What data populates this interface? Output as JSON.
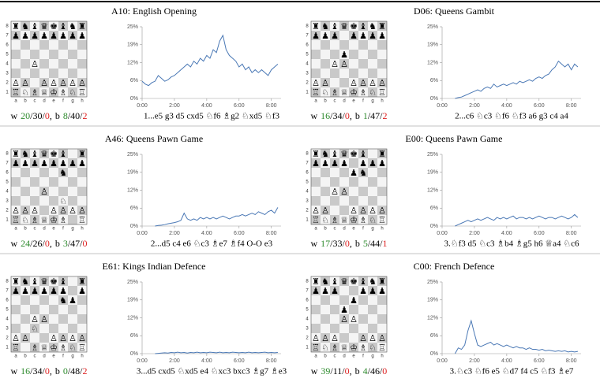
{
  "files": [
    "a",
    "b",
    "c",
    "d",
    "e",
    "f",
    "g",
    "h"
  ],
  "ranks": [
    "8",
    "7",
    "6",
    "5",
    "4",
    "3",
    "2",
    "1"
  ],
  "stats_labels": {
    "w": "w",
    "b": "b",
    "slash": "/",
    "comma": ","
  },
  "chart_data": [
    {
      "type": "line",
      "title": "A10: English Opening",
      "color": "#4a78b5",
      "board": [
        "♜♞♝♛♚♝♞♜",
        "♟♟♟♟♟♟♟♟",
        "        ",
        "        ",
        "  ♙     ",
        "        ",
        "♙♙ ♙♙♙♙♙",
        "♖♘♗♕♔♗♘♖"
      ],
      "stats": {
        "w": [
          20,
          30,
          0
        ],
        "b": [
          8,
          40,
          2
        ]
      },
      "moves": "1...e5 g3 d5 cxd5 ♘f6 ♗g2 ♘xd5 ♘f3",
      "x": [
        0,
        0.2,
        0.4,
        0.6,
        0.8,
        1,
        1.2,
        1.4,
        1.6,
        1.8,
        2,
        2.2,
        2.4,
        2.6,
        2.8,
        3,
        3.2,
        3.4,
        3.6,
        3.8,
        4,
        4.2,
        4.4,
        4.6,
        4.8,
        5,
        5.2,
        5.4,
        5.6,
        5.8,
        6,
        6.2,
        6.4,
        6.6,
        6.8,
        7,
        7.2,
        7.4,
        7.6,
        7.8,
        8,
        8.2,
        8.4
      ],
      "values": [
        6,
        5,
        4.5,
        5.5,
        6,
        8,
        7,
        6,
        6.5,
        7.5,
        8,
        9,
        10,
        11,
        12,
        11,
        13,
        12,
        14,
        13,
        15,
        14,
        17,
        16,
        20,
        22,
        17,
        15,
        14,
        13,
        11,
        12,
        10,
        11,
        9,
        10,
        9,
        10,
        9,
        8,
        10,
        11,
        12
      ],
      "xlim": [
        0,
        8.6
      ],
      "xticks": [
        {
          "value": 0,
          "label": "0:00"
        },
        {
          "value": 2,
          "label": "2:00"
        },
        {
          "value": 4,
          "label": "4:00"
        },
        {
          "value": 6,
          "label": "6:00"
        },
        {
          "value": 8,
          "label": "8:00"
        }
      ],
      "ylim": [
        0,
        25
      ],
      "yticks": [
        {
          "value": 0,
          "label": "0%"
        },
        {
          "value": 6.25,
          "label": "6%"
        },
        {
          "value": 12.5,
          "label": "12%"
        },
        {
          "value": 18.75,
          "label": "19%"
        },
        {
          "value": 25,
          "label": "25%"
        }
      ]
    },
    {
      "type": "line",
      "title": "D06: Queens Gambit",
      "color": "#4a78b5",
      "board": [
        "♜♞♝♛♚♝♞♜",
        "♟♟♟ ♟♟♟♟",
        "        ",
        "   ♟    ",
        "  ♙♙    ",
        "        ",
        "♙♙  ♙♙♙♙",
        "♖♘♗♕♔♗♘♖"
      ],
      "stats": {
        "w": [
          16,
          34,
          0
        ],
        "b": [
          1,
          47,
          2
        ]
      },
      "moves": "2...c6 ♘c3 ♘f6 ♘f3 a6 g3 c4 a4",
      "x": [
        0.8,
        1,
        1.2,
        1.4,
        1.6,
        1.8,
        2,
        2.2,
        2.4,
        2.6,
        2.8,
        3,
        3.2,
        3.4,
        3.6,
        3.8,
        4,
        4.2,
        4.4,
        4.6,
        4.8,
        5,
        5.2,
        5.4,
        5.6,
        5.8,
        6,
        6.2,
        6.4,
        6.6,
        6.8,
        7,
        7.2,
        7.4,
        7.6,
        7.8,
        8,
        8.2,
        8.4
      ],
      "values": [
        0,
        0.3,
        0.5,
        1,
        1.5,
        2,
        2.5,
        3,
        2.5,
        3.5,
        4,
        3.5,
        5,
        4,
        4.5,
        5,
        4.5,
        5,
        5.5,
        5,
        6,
        5.5,
        6,
        6.5,
        6,
        7,
        7.5,
        7,
        8,
        8.5,
        10,
        11,
        13,
        12,
        11,
        12,
        10,
        12,
        11
      ],
      "xlim": [
        0,
        8.6
      ],
      "xticks": [
        {
          "value": 0,
          "label": "0:00"
        },
        {
          "value": 2,
          "label": "2:00"
        },
        {
          "value": 4,
          "label": "4:00"
        },
        {
          "value": 6,
          "label": "6:00"
        },
        {
          "value": 8,
          "label": "8:00"
        }
      ],
      "ylim": [
        0,
        25
      ],
      "yticks": [
        {
          "value": 0,
          "label": "0%"
        },
        {
          "value": 6.25,
          "label": "6%"
        },
        {
          "value": 12.5,
          "label": "12%"
        },
        {
          "value": 18.75,
          "label": "19%"
        },
        {
          "value": 25,
          "label": "25%"
        }
      ]
    },
    {
      "type": "line",
      "title": "A46: Queens Pawn Game",
      "color": "#4a78b5",
      "board": [
        "♜♞♝♛♚♝ ♜",
        "♟♟♟♟♟♟♟♟",
        "     ♞  ",
        "        ",
        "   ♙    ",
        "     ♘  ",
        "♙♙♙ ♙♙♙♙",
        "♖♘♗♕♔♗ ♖"
      ],
      "stats": {
        "w": [
          24,
          26,
          0
        ],
        "b": [
          3,
          47,
          0
        ]
      },
      "moves": "2...d5 c4 e6 ♘c3 ♗e7 ♗f4 O-O e3",
      "x": [
        0.8,
        1,
        1.2,
        1.4,
        1.6,
        1.8,
        2,
        2.2,
        2.4,
        2.6,
        2.8,
        3,
        3.2,
        3.4,
        3.6,
        3.8,
        4,
        4.2,
        4.4,
        4.6,
        4.8,
        5,
        5.2,
        5.4,
        5.6,
        5.8,
        6,
        6.2,
        6.4,
        6.6,
        6.8,
        7,
        7.2,
        7.4,
        7.6,
        7.8,
        8,
        8.2,
        8.4
      ],
      "values": [
        0,
        0.2,
        0.3,
        0.5,
        0.8,
        1,
        1.2,
        1.5,
        2,
        4.5,
        2.5,
        2,
        2.5,
        2,
        3,
        2.5,
        3,
        2.5,
        3,
        2.5,
        3,
        3.5,
        3,
        2.5,
        3,
        3.5,
        3.5,
        4,
        3.5,
        4,
        4.5,
        4,
        5,
        4.5,
        4,
        5,
        5.5,
        4.5,
        6.5
      ],
      "xlim": [
        0,
        8.6
      ],
      "xticks": [
        {
          "value": 0,
          "label": "0:00"
        },
        {
          "value": 2,
          "label": "2:00"
        },
        {
          "value": 4,
          "label": "4:00"
        },
        {
          "value": 6,
          "label": "6:00"
        },
        {
          "value": 8,
          "label": "8:00"
        }
      ],
      "ylim": [
        0,
        25
      ],
      "yticks": [
        {
          "value": 0,
          "label": "0%"
        },
        {
          "value": 6.25,
          "label": "6%"
        },
        {
          "value": 12.5,
          "label": "12%"
        },
        {
          "value": 18.75,
          "label": "19%"
        },
        {
          "value": 25,
          "label": "25%"
        }
      ]
    },
    {
      "type": "line",
      "title": "E00: Queens Pawn Game",
      "color": "#4a78b5",
      "board": [
        "♜♞♝♛♚♝ ♜",
        "♟♟♟♟ ♟♟♟",
        "    ♟♞  ",
        "        ",
        "  ♙♙    ",
        "        ",
        "♙♙  ♙♙♙♙",
        "♖♘♗♕♔♗♘♖"
      ],
      "stats": {
        "w": [
          17,
          33,
          0
        ],
        "b": [
          5,
          44,
          1
        ]
      },
      "moves": "3.♘f3 d5 ♘c3 ♗b4 ♗g5 h6 ♕a4 ♘c6",
      "x": [
        0.8,
        1,
        1.2,
        1.4,
        1.6,
        1.8,
        2,
        2.2,
        2.4,
        2.6,
        2.8,
        3,
        3.2,
        3.4,
        3.6,
        3.8,
        4,
        4.2,
        4.4,
        4.6,
        4.8,
        5,
        5.2,
        5.4,
        5.6,
        5.8,
        6,
        6.2,
        6.4,
        6.6,
        6.8,
        7,
        7.2,
        7.4,
        7.6,
        7.8,
        8,
        8.2,
        8.4
      ],
      "values": [
        0,
        0.5,
        1,
        1.5,
        2,
        1.5,
        2,
        2.5,
        2,
        2.5,
        3,
        2.5,
        2,
        3,
        2.5,
        3,
        2.5,
        3,
        3.5,
        2.5,
        3,
        3,
        2.5,
        3,
        2.5,
        3,
        3.5,
        3,
        2.5,
        3,
        3,
        2.5,
        3,
        3.5,
        3,
        2.5,
        3,
        4,
        3
      ],
      "xlim": [
        0,
        8.6
      ],
      "xticks": [
        {
          "value": 0,
          "label": "0:00"
        },
        {
          "value": 2,
          "label": "2:00"
        },
        {
          "value": 4,
          "label": "4:00"
        },
        {
          "value": 6,
          "label": "6:00"
        },
        {
          "value": 8,
          "label": "8:00"
        }
      ],
      "ylim": [
        0,
        25
      ],
      "yticks": [
        {
          "value": 0,
          "label": "0%"
        },
        {
          "value": 6.25,
          "label": "6%"
        },
        {
          "value": 12.5,
          "label": "12%"
        },
        {
          "value": 18.75,
          "label": "19%"
        },
        {
          "value": 25,
          "label": "25%"
        }
      ]
    },
    {
      "type": "line",
      "title": "E61: Kings Indian Defence",
      "color": "#4a78b5",
      "board": [
        "♜♞♝♛♚♝ ♜",
        "♟♟♟♟♟♟ ♟",
        "     ♞♟ ",
        "        ",
        "  ♙♙    ",
        "  ♘     ",
        "♙♙  ♙♙♙♙",
        "♖ ♗♕♔♗♘♖"
      ],
      "stats": {
        "w": [
          16,
          34,
          0
        ],
        "b": [
          0,
          48,
          2
        ]
      },
      "moves": "3...d5 cxd5 ♘xd5 e4 ♘xc3 bxc3 ♗g7 ♗e3",
      "x": [
        0.8,
        1,
        1.2,
        1.4,
        1.6,
        1.8,
        2,
        2.2,
        2.4,
        2.6,
        2.8,
        3,
        3.2,
        3.4,
        3.6,
        3.8,
        4,
        4.2,
        4.4,
        4.6,
        4.8,
        5,
        5.2,
        5.4,
        5.6,
        5.8,
        6,
        6.2,
        6.4,
        6.6,
        6.8,
        7,
        7.2,
        7.4,
        7.6,
        7.8,
        8,
        8.2,
        8.4
      ],
      "values": [
        0,
        0.1,
        0.2,
        0.3,
        0.2,
        0.4,
        0.3,
        0.5,
        0.3,
        0.4,
        0.2,
        0.4,
        0.3,
        0.5,
        0.3,
        0.4,
        0.3,
        0.5,
        0.4,
        0.3,
        0.5,
        0.3,
        0.4,
        0.3,
        0.5,
        0.4,
        0.3,
        0.4,
        0.3,
        0.5,
        0.3,
        0.4,
        0.3,
        0.4,
        0.5,
        0.3,
        0.4,
        0.3,
        0.4
      ],
      "xlim": [
        0,
        8.6
      ],
      "xticks": [
        {
          "value": 0,
          "label": "0:00"
        },
        {
          "value": 2,
          "label": "2:00"
        },
        {
          "value": 4,
          "label": "4:00"
        },
        {
          "value": 6,
          "label": "6:00"
        },
        {
          "value": 8,
          "label": "8:00"
        }
      ],
      "ylim": [
        0,
        25
      ],
      "yticks": [
        {
          "value": 0,
          "label": "0%"
        },
        {
          "value": 6.25,
          "label": "6%"
        },
        {
          "value": 12.5,
          "label": "12%"
        },
        {
          "value": 18.75,
          "label": "19%"
        },
        {
          "value": 25,
          "label": "25%"
        }
      ]
    },
    {
      "type": "line",
      "title": "C00: French Defence",
      "color": "#4a78b5",
      "board": [
        "♜♞♝♛♚♝♞♜",
        "♟♟♟  ♟♟♟",
        "    ♟   ",
        "   ♟    ",
        "   ♙♙   ",
        "        ",
        "♙♙♙  ♙♙♙",
        "♖♘♗♕♔♗♘♖"
      ],
      "stats": {
        "w": [
          39,
          11,
          0
        ],
        "b": [
          4,
          46,
          0
        ]
      },
      "moves": "3.♘c3 ♘f6 e5 ♘d7 f4 c5 ♘f3 ♗e7",
      "x": [
        0.8,
        1,
        1.2,
        1.4,
        1.6,
        1.8,
        2,
        2.2,
        2.4,
        2.6,
        2.8,
        3,
        3.2,
        3.4,
        3.6,
        3.8,
        4,
        4.2,
        4.4,
        4.6,
        4.8,
        5,
        5.2,
        5.4,
        5.6,
        5.8,
        6,
        6.2,
        6.4,
        6.6,
        6.8,
        7,
        7.2,
        7.4,
        7.6,
        7.8,
        8,
        8.2,
        8.4
      ],
      "values": [
        0,
        2,
        1.5,
        3,
        8,
        11.5,
        7,
        3,
        2.5,
        3,
        3.5,
        4,
        3,
        3.5,
        3,
        2.5,
        3,
        2.5,
        2,
        2.5,
        2,
        2,
        1.5,
        2,
        1.5,
        1.5,
        1.2,
        1.5,
        1,
        1.2,
        1,
        0.8,
        1,
        0.8,
        1,
        0.6,
        0.8,
        0.6,
        0.8
      ],
      "xlim": [
        0,
        8.6
      ],
      "xticks": [
        {
          "value": 0,
          "label": "0:00"
        },
        {
          "value": 2,
          "label": "2:00"
        },
        {
          "value": 4,
          "label": "4:00"
        },
        {
          "value": 6,
          "label": "6:00"
        },
        {
          "value": 8,
          "label": "8:00"
        }
      ],
      "ylim": [
        0,
        25
      ],
      "yticks": [
        {
          "value": 0,
          "label": "0%"
        },
        {
          "value": 6.25,
          "label": "6%"
        },
        {
          "value": 12.5,
          "label": "12%"
        },
        {
          "value": 18.75,
          "label": "19%"
        },
        {
          "value": 25,
          "label": "25%"
        }
      ]
    }
  ]
}
